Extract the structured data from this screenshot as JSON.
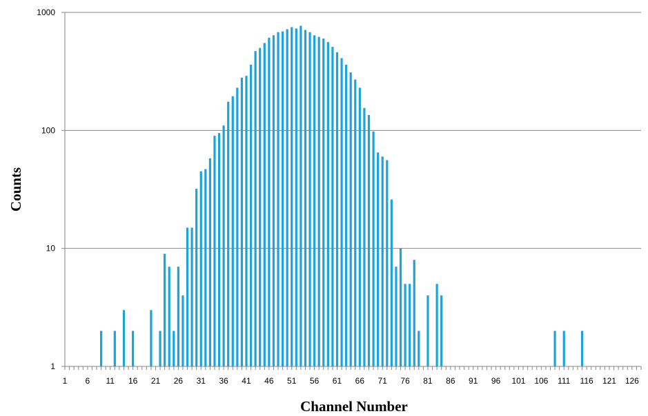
{
  "chart_data": {
    "type": "bar",
    "title": "",
    "xlabel": "Channel Number",
    "ylabel": "Counts",
    "y_scale": "log",
    "ylim": [
      1,
      1000
    ],
    "xlim": [
      1,
      128
    ],
    "grid": true,
    "bar_color": "#1aa3dd",
    "y_ticks": [
      "1",
      "10",
      "100",
      "1000"
    ],
    "x_ticks": [
      "1",
      "6",
      "11",
      "16",
      "21",
      "26",
      "31",
      "36",
      "41",
      "46",
      "51",
      "56",
      "61",
      "66",
      "71",
      "76",
      "81",
      "86",
      "91",
      "96",
      "101",
      "106",
      "111",
      "116",
      "121",
      "126"
    ],
    "series": [
      {
        "points": [
          {
            "x": 9,
            "y": 2
          },
          {
            "x": 12,
            "y": 2
          },
          {
            "x": 14,
            "y": 3
          },
          {
            "x": 16,
            "y": 2
          },
          {
            "x": 20,
            "y": 3
          },
          {
            "x": 22,
            "y": 2
          },
          {
            "x": 23,
            "y": 9
          },
          {
            "x": 24,
            "y": 7
          },
          {
            "x": 25,
            "y": 2
          },
          {
            "x": 26,
            "y": 7
          },
          {
            "x": 27,
            "y": 4
          },
          {
            "x": 28,
            "y": 15
          },
          {
            "x": 29,
            "y": 15
          },
          {
            "x": 30,
            "y": 32
          },
          {
            "x": 31,
            "y": 45
          },
          {
            "x": 32,
            "y": 47
          },
          {
            "x": 33,
            "y": 58
          },
          {
            "x": 34,
            "y": 90
          },
          {
            "x": 35,
            "y": 95
          },
          {
            "x": 36,
            "y": 110
          },
          {
            "x": 37,
            "y": 175
          },
          {
            "x": 38,
            "y": 195
          },
          {
            "x": 39,
            "y": 230
          },
          {
            "x": 40,
            "y": 280
          },
          {
            "x": 41,
            "y": 290
          },
          {
            "x": 42,
            "y": 360
          },
          {
            "x": 43,
            "y": 470
          },
          {
            "x": 44,
            "y": 500
          },
          {
            "x": 45,
            "y": 550
          },
          {
            "x": 46,
            "y": 610
          },
          {
            "x": 47,
            "y": 640
          },
          {
            "x": 48,
            "y": 680
          },
          {
            "x": 49,
            "y": 690
          },
          {
            "x": 50,
            "y": 720
          },
          {
            "x": 51,
            "y": 750
          },
          {
            "x": 52,
            "y": 730
          },
          {
            "x": 53,
            "y": 770
          },
          {
            "x": 54,
            "y": 710
          },
          {
            "x": 55,
            "y": 680
          },
          {
            "x": 56,
            "y": 640
          },
          {
            "x": 57,
            "y": 620
          },
          {
            "x": 58,
            "y": 600
          },
          {
            "x": 59,
            "y": 560
          },
          {
            "x": 60,
            "y": 510
          },
          {
            "x": 61,
            "y": 460
          },
          {
            "x": 62,
            "y": 410
          },
          {
            "x": 63,
            "y": 360
          },
          {
            "x": 64,
            "y": 310
          },
          {
            "x": 65,
            "y": 270
          },
          {
            "x": 66,
            "y": 230
          },
          {
            "x": 67,
            "y": 155
          },
          {
            "x": 68,
            "y": 135
          },
          {
            "x": 69,
            "y": 98
          },
          {
            "x": 70,
            "y": 65
          },
          {
            "x": 71,
            "y": 60
          },
          {
            "x": 72,
            "y": 56
          },
          {
            "x": 73,
            "y": 26
          },
          {
            "x": 74,
            "y": 7
          },
          {
            "x": 75,
            "y": 10
          },
          {
            "x": 76,
            "y": 5
          },
          {
            "x": 77,
            "y": 5
          },
          {
            "x": 78,
            "y": 8
          },
          {
            "x": 79,
            "y": 2
          },
          {
            "x": 81,
            "y": 4
          },
          {
            "x": 83,
            "y": 5
          },
          {
            "x": 84,
            "y": 4
          },
          {
            "x": 109,
            "y": 2
          },
          {
            "x": 111,
            "y": 2
          },
          {
            "x": 115,
            "y": 2
          }
        ]
      }
    ]
  }
}
